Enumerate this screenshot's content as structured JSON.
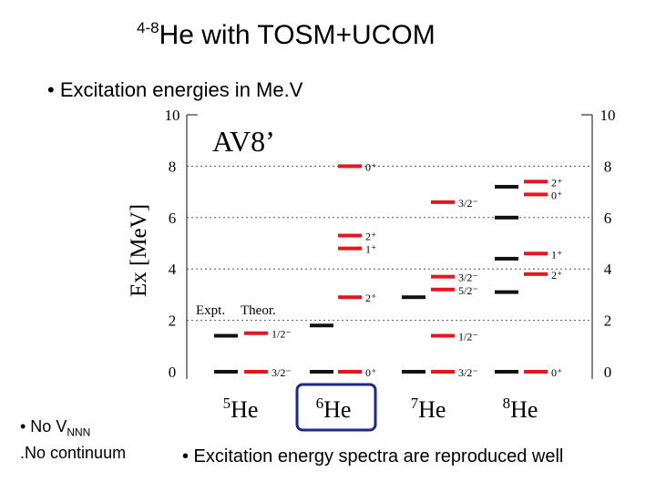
{
  "slide": {
    "title_sup": "4-8",
    "title_main": "He  with TOSM+UCOM",
    "subtitle": "• Excitation energies in Me.V",
    "note1_main": "• No V",
    "note1_sub": "NNN",
    "note2": "No continuum",
    "conclusion": "• Excitation energy spectra are reproduced well"
  },
  "colors": {
    "expt": "#111111",
    "theor": "#e8141e",
    "highlight": "#1a2a8a",
    "grid": "#555555"
  },
  "chart_data": {
    "type": "level-scheme",
    "ylabel": "Ex  [MeV]",
    "ylim": [
      0,
      10
    ],
    "yticks": [
      "0",
      "2",
      "4",
      "6",
      "8",
      "10"
    ],
    "annotation": "AV8’",
    "legend": {
      "expt": "Expt.",
      "theor": "Theor."
    },
    "nuclei": [
      {
        "name": "He",
        "mass": "5",
        "expt": [
          0,
          1.4
        ],
        "theor": [
          {
            "e": 0,
            "label": "3/2⁻"
          },
          {
            "e": 1.5,
            "label": "1/2⁻"
          }
        ]
      },
      {
        "name": "He",
        "mass": "6",
        "highlight": true,
        "expt": [
          0,
          1.8
        ],
        "theor": [
          {
            "e": 0,
            "label": "0⁺"
          },
          {
            "e": 2.9,
            "label": "2⁺"
          },
          {
            "e": 4.8,
            "label": "1⁺"
          },
          {
            "e": 5.3,
            "label": "2⁺"
          },
          {
            "e": 8.0,
            "label": "0⁺"
          }
        ]
      },
      {
        "name": "He",
        "mass": "7",
        "expt": [
          0,
          2.9
        ],
        "theor": [
          {
            "e": 0,
            "label": "3/2⁻"
          },
          {
            "e": 1.4,
            "label": "1/2⁻"
          },
          {
            "e": 3.2,
            "label": "5/2⁻"
          },
          {
            "e": 3.7,
            "label": "3/2⁻"
          },
          {
            "e": 6.6,
            "label": "3/2⁻"
          }
        ]
      },
      {
        "name": "He",
        "mass": "8",
        "expt": [
          0,
          3.1,
          4.4,
          6.0,
          7.2
        ],
        "theor": [
          {
            "e": 0,
            "label": "0⁺"
          },
          {
            "e": 3.8,
            "label": "2⁺"
          },
          {
            "e": 4.6,
            "label": "1⁺"
          },
          {
            "e": 6.9,
            "label": "0⁺"
          },
          {
            "e": 7.4,
            "label": "2⁺"
          }
        ]
      }
    ]
  }
}
